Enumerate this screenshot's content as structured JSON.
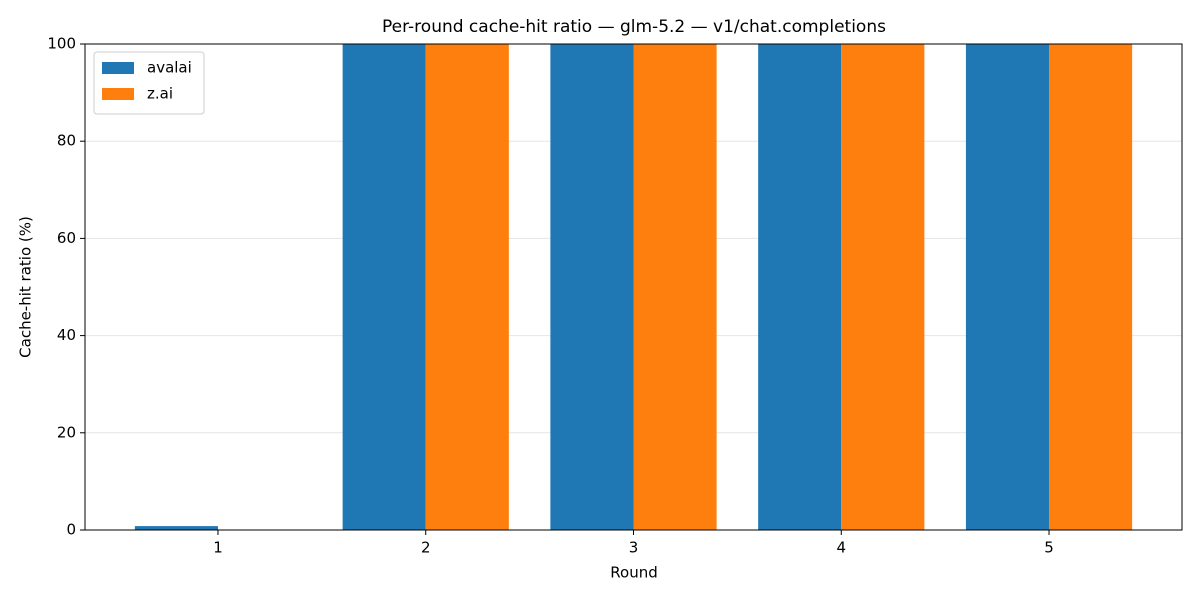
{
  "chart_data": {
    "type": "bar",
    "title": "Per-round cache-hit ratio — glm-5.2 — v1/chat.completions",
    "x_label": "Round",
    "y_label": "Cache-hit ratio (%)",
    "categories": [
      "1",
      "2",
      "3",
      "4",
      "5"
    ],
    "series": [
      {
        "name": "avalai",
        "color": "#1f77b4",
        "values": [
          0.8,
          100,
          100,
          100,
          100
        ]
      },
      {
        "name": "z.ai",
        "color": "#ff7f0e",
        "values": [
          0,
          100,
          100,
          100,
          100
        ]
      }
    ],
    "ylim": [
      0,
      100
    ],
    "yticks": [
      0,
      20,
      40,
      60,
      80,
      100
    ],
    "grid": true,
    "legend": "upper left"
  }
}
